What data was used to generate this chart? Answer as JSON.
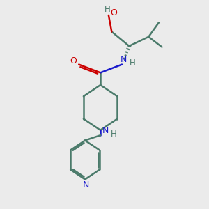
{
  "bg_color": "#ebebeb",
  "bond_color": "#4a7a6a",
  "nitrogen_color": "#1a1acc",
  "oxygen_color": "#cc0000",
  "bond_width": 1.8,
  "fig_size": [
    3.0,
    3.0
  ],
  "dpi": 100,
  "xlim": [
    0,
    10
  ],
  "ylim": [
    0,
    10
  ]
}
